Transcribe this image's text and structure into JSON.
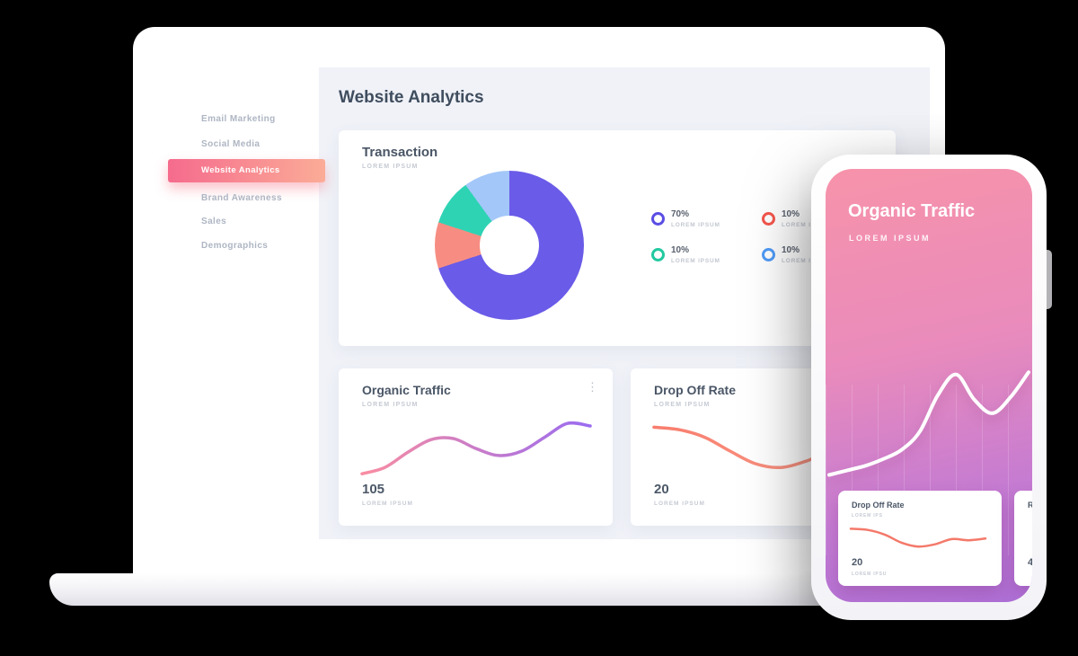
{
  "sidebar": {
    "items": [
      {
        "label": "Email Marketing",
        "active": false
      },
      {
        "label": "Social Media",
        "active": false
      },
      {
        "label": "Website Analytics",
        "active": true
      },
      {
        "label": "Brand Awareness",
        "active": false
      },
      {
        "label": "Sales",
        "active": false
      },
      {
        "label": "Demographics",
        "active": false
      }
    ]
  },
  "main": {
    "title": "Website Analytics",
    "transaction_card": {
      "title": "Transaction",
      "subtitle": "LOREM IPSUM",
      "chart_data": {
        "type": "pie",
        "segments": [
          {
            "value": 70,
            "color": "#6a5be8",
            "label": "LOREM IPSUM"
          },
          {
            "value": 10,
            "color": "#f78d82",
            "label": "LOREM IPSUM"
          },
          {
            "value": 10,
            "color": "#2ed3b4",
            "label": "LOREM IPSUM"
          },
          {
            "value": 10,
            "color": "#a3c7f8",
            "label": "LOREM IPSUM"
          }
        ]
      },
      "legend": [
        {
          "value": "70%",
          "label": "LOREM IPSUM",
          "color": "#5b4ee4"
        },
        {
          "value": "10%",
          "label": "LOREM IPSUM",
          "color": "#f4574d"
        },
        {
          "value": "10%",
          "label": "LOREM IPSUM",
          "color": "#22c9a0"
        },
        {
          "value": "10%",
          "label": "LOREM IPSUM",
          "color": "#4f9bf7"
        }
      ]
    },
    "organic_card": {
      "title": "Organic Traffic",
      "subtitle": "LOREM IPSUM",
      "menu_icon": "⋮",
      "value": "105",
      "value_label": "LOREM IPSUM",
      "chart_data": {
        "type": "line",
        "values": [
          4,
          14,
          38,
          58,
          60,
          44,
          33,
          40,
          62,
          84,
          80
        ],
        "color_start": "#f98da1",
        "color_end": "#9a6cf0"
      }
    },
    "dropoff_card": {
      "title": "Drop Off Rate",
      "subtitle": "LOREM IPSUM",
      "value": "20",
      "value_label": "LOREM IPSUM",
      "chart_data": {
        "type": "line",
        "values": [
          78,
          74,
          62,
          40,
          20,
          14,
          24,
          40,
          40,
          44
        ],
        "color_start": "#f87d6d",
        "color_end": "#fa9f8d"
      }
    }
  },
  "phone": {
    "title": "Organic Traffic",
    "subtitle": "LOREM IPSUM",
    "chart_data": {
      "type": "line",
      "values": [
        2,
        6,
        10,
        16,
        24,
        40,
        72,
        90,
        68,
        56,
        70,
        92
      ],
      "color": "#ffffff"
    },
    "cards": [
      {
        "title": "Drop Off Rate",
        "subtitle": "LOREM IPS",
        "value": "20",
        "value_label": "LOREM IPSU",
        "chart_data": {
          "type": "line",
          "values": [
            80,
            76,
            60,
            32,
            18,
            26,
            44,
            40,
            46
          ],
          "color": "#f4796a"
        }
      },
      {
        "title": "R",
        "value": "4"
      }
    ]
  }
}
